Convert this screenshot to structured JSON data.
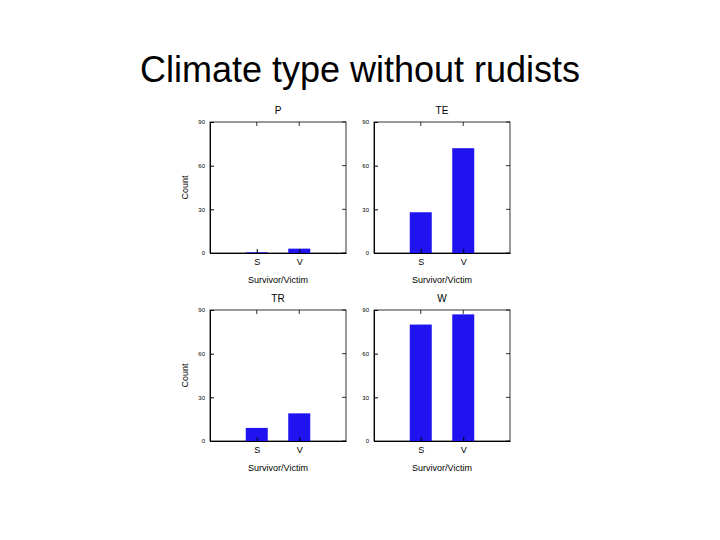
{
  "title": "Climate type without rudists",
  "chart_data": [
    {
      "type": "bar",
      "title": "P",
      "categories": [
        "S",
        "V"
      ],
      "values": [
        0.5,
        3
      ],
      "color": "#1f14f0",
      "xlabel": "Survivor/Victim",
      "ylabel": "Count",
      "ylim": [
        0,
        90
      ],
      "yticks": [
        0,
        30,
        60,
        90
      ],
      "grid": false
    },
    {
      "type": "bar",
      "title": "TE",
      "categories": [
        "S",
        "V"
      ],
      "values": [
        28,
        72
      ],
      "color": "#1f14f0",
      "xlabel": "Survivor/Victim",
      "ylim": [
        0,
        90
      ],
      "yticks": [
        0,
        30,
        60,
        90
      ],
      "grid": false
    },
    {
      "type": "bar",
      "title": "TR",
      "categories": [
        "S",
        "V"
      ],
      "values": [
        9,
        19
      ],
      "color": "#1f14f0",
      "xlabel": "Survivor/Victim",
      "ylabel": "Count",
      "ylim": [
        0,
        90
      ],
      "yticks": [
        0,
        30,
        60,
        90
      ],
      "grid": false
    },
    {
      "type": "bar",
      "title": "W",
      "categories": [
        "S",
        "V"
      ],
      "values": [
        80,
        87
      ],
      "color": "#1f14f0",
      "xlabel": "Survivor/Victim",
      "ylim": [
        0,
        90
      ],
      "yticks": [
        0,
        30,
        60,
        90
      ],
      "grid": false
    }
  ]
}
